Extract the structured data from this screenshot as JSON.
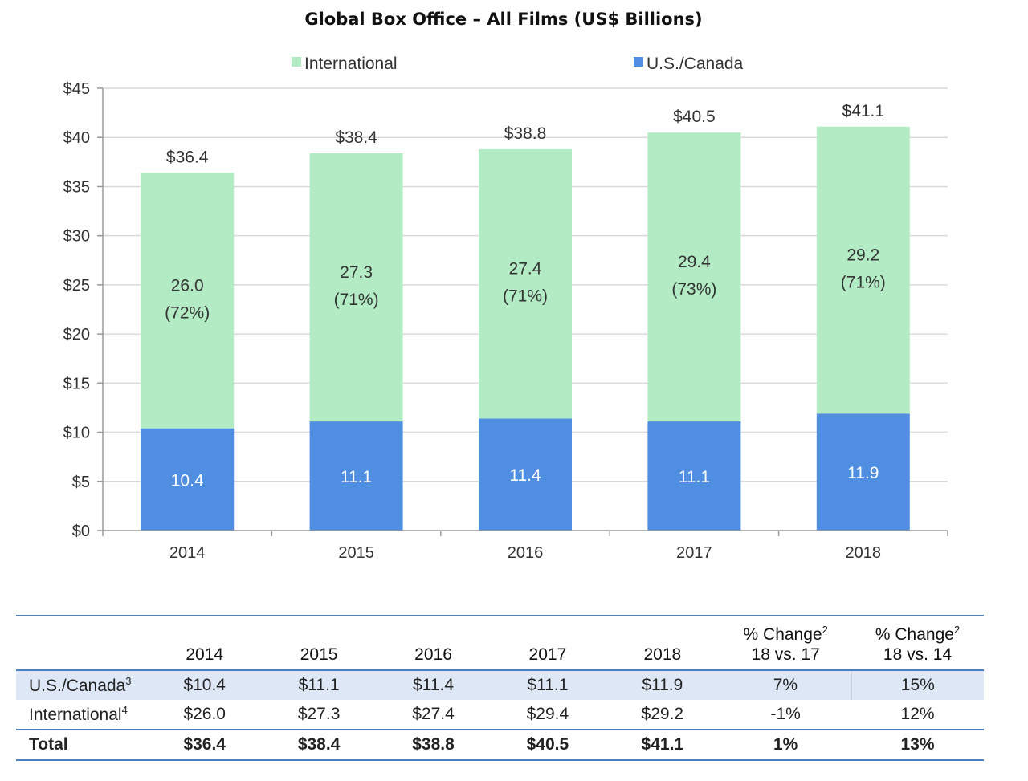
{
  "chart_data": {
    "type": "bar",
    "stacked": true,
    "title": "Global Box Office – All Films (US$ Billions)",
    "categories": [
      "2014",
      "2015",
      "2016",
      "2017",
      "2018"
    ],
    "series": [
      {
        "name": "U.S./Canada",
        "color": "#4f8ee0",
        "values": [
          10.4,
          11.1,
          11.4,
          11.1,
          11.9
        ],
        "labels": [
          "10.4",
          "11.1",
          "11.4",
          "11.1",
          "11.9"
        ]
      },
      {
        "name": "International",
        "color": "#b3ecc4",
        "values": [
          26.0,
          27.3,
          27.4,
          29.4,
          29.2
        ],
        "labels": [
          "26.0",
          "27.3",
          "27.4",
          "29.4",
          "29.2"
        ],
        "shares": [
          "(72%)",
          "(71%)",
          "(71%)",
          "(73%)",
          "(71%)"
        ]
      }
    ],
    "totals": [
      36.4,
      38.4,
      38.8,
      40.5,
      41.1
    ],
    "total_labels": [
      "$36.4",
      "$38.4",
      "$38.8",
      "$40.5",
      "$41.1"
    ],
    "ylim": [
      0,
      45
    ],
    "ytick_values": [
      0,
      5,
      10,
      15,
      20,
      25,
      30,
      35,
      40,
      45
    ],
    "yticks": [
      "$0",
      "$5",
      "$10",
      "$15",
      "$20",
      "$25",
      "$30",
      "$35",
      "$40",
      "$45"
    ],
    "grid": true,
    "legend": {
      "placement": "top",
      "items": [
        {
          "label": "International",
          "color": "#b3ecc4"
        },
        {
          "label": "U.S./Canada",
          "color": "#4f8ee0"
        }
      ]
    },
    "xlabel": "",
    "ylabel": ""
  },
  "table": {
    "headers": [
      "2014",
      "2015",
      "2016",
      "2017",
      "2018"
    ],
    "change1": {
      "label": "% Change",
      "sup": "2",
      "sub": "18 vs. 17"
    },
    "change2": {
      "label": "% Change",
      "sup": "2",
      "sub": "18 vs. 14"
    },
    "rows": [
      {
        "label": "U.S./Canada",
        "sup": "3",
        "cells": [
          "$10.4",
          "$11.1",
          "$11.4",
          "$11.1",
          "$11.9",
          "7%",
          "15%"
        ]
      },
      {
        "label": "International",
        "sup": "4",
        "cells": [
          "$26.0",
          "$27.3",
          "$27.4",
          "$29.4",
          "$29.2",
          "-1%",
          "12%"
        ]
      },
      {
        "label": "Total",
        "sup": "",
        "cells": [
          "$36.4",
          "$38.4",
          "$38.8",
          "$40.5",
          "$41.1",
          "1%",
          "13%"
        ]
      }
    ]
  }
}
